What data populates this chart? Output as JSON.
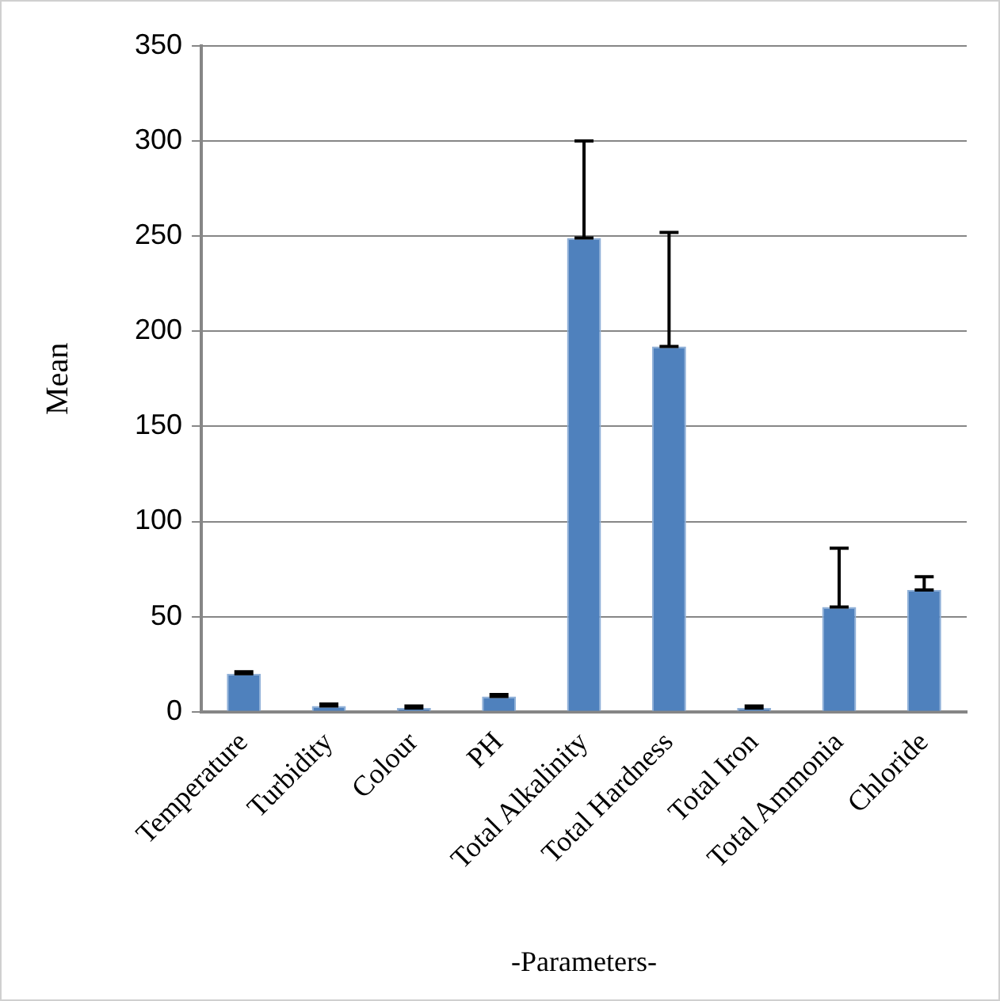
{
  "chart_data": {
    "type": "bar",
    "xlabel": "-Parameters-",
    "ylabel": "Mean",
    "categories": [
      "Temperature",
      "Turbidity",
      "Colour",
      "PH",
      "Total Alkalinity",
      "Total Hardness",
      "Total Iron",
      "Total Ammonia",
      "Chloride"
    ],
    "values": [
      20,
      3,
      2,
      8,
      249,
      192,
      2,
      55,
      64
    ],
    "errors": [
      [
        20,
        21
      ],
      [
        3,
        4
      ],
      [
        2,
        3
      ],
      [
        8,
        9
      ],
      [
        249,
        300
      ],
      [
        192,
        252
      ],
      [
        2,
        3
      ],
      [
        55,
        86
      ],
      [
        64,
        71
      ]
    ],
    "color": "#4f81bd",
    "ylim": [
      0,
      350
    ],
    "yticks": [
      0,
      50,
      100,
      150,
      200,
      250,
      300,
      350
    ],
    "grid": "y",
    "legend": false
  }
}
